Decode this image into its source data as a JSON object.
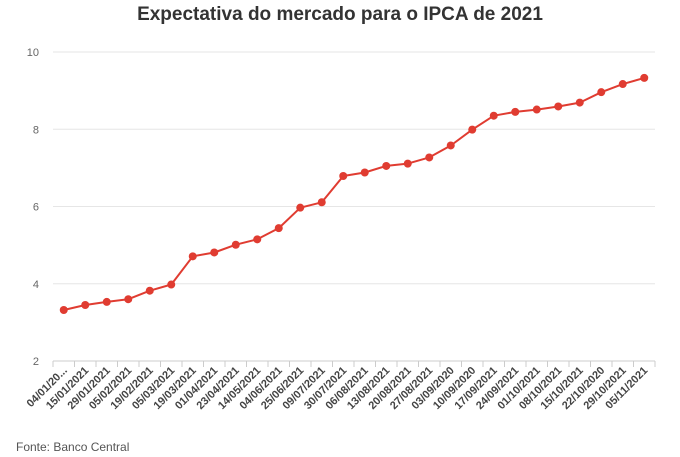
{
  "chart_data": {
    "type": "line",
    "title": "Expectativa do mercado para o IPCA de 2021",
    "xlabel": "",
    "ylabel": "",
    "ylim": [
      2,
      10
    ],
    "yticks": [
      2,
      4,
      6,
      8,
      10
    ],
    "grid": true,
    "legend": "none",
    "categories": [
      "04/01/20...",
      "15/01/2021",
      "29/01/2021",
      "05/02/2021",
      "19/02/2021",
      "05/03/2021",
      "19/03/2021",
      "01/04/2021",
      "23/04/2021",
      "14/05/2021",
      "04/06/2021",
      "25/06/2021",
      "09/07/2021",
      "30/07/2021",
      "06/08/2021",
      "13/08/2021",
      "20/08/2021",
      "27/08/2021",
      "03/09/2020",
      "10/09/2020",
      "17/09/2021",
      "24/09/2021",
      "01/10/2021",
      "08/10/2021",
      "15/10/2021",
      "22/10/2020",
      "29/10/2021",
      "05/11/2021"
    ],
    "series": [
      {
        "values": [
          3.32,
          3.45,
          3.53,
          3.6,
          3.82,
          3.98,
          4.71,
          4.81,
          5.01,
          5.15,
          5.44,
          5.97,
          6.11,
          6.79,
          6.88,
          7.05,
          7.11,
          7.27,
          7.58,
          7.99,
          8.35,
          8.45,
          8.51,
          8.59,
          8.69,
          8.96,
          9.17,
          9.33
        ],
        "color": "#e03c31"
      }
    ],
    "source": "Fonte: Banco Central"
  },
  "colors": {
    "line": "#e03c31",
    "grid": "#e6e6e6",
    "axis_text": "#666666",
    "title_text": "#333333"
  }
}
